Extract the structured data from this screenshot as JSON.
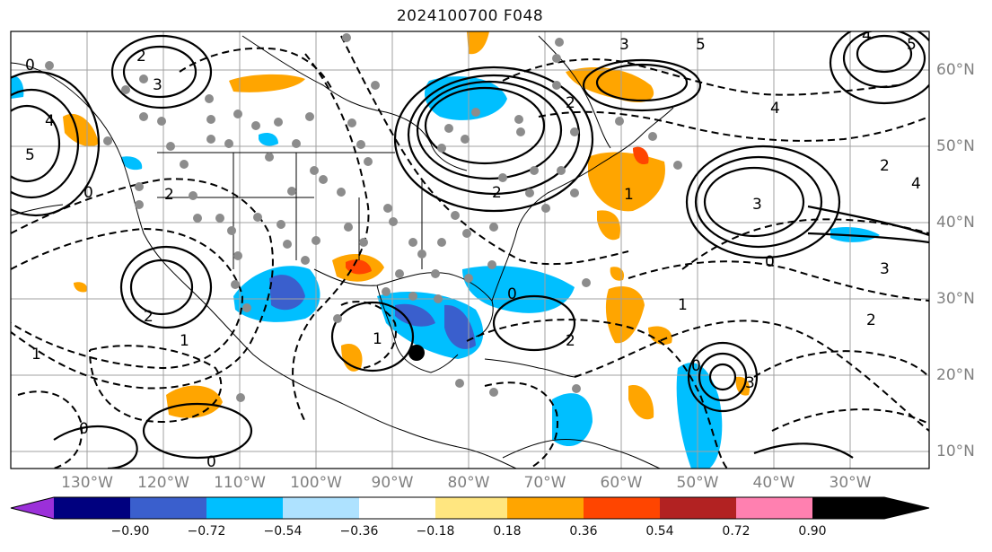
{
  "title": "2024100700 F048",
  "lon_labels": [
    "130°W",
    "120°W",
    "110°W",
    "100°W",
    "90°W",
    "80°W",
    "70°W",
    "60°W",
    "50°W",
    "40°W",
    "30°W"
  ],
  "lat_labels": [
    "60°N",
    "50°N",
    "40°N",
    "30°N",
    "20°N",
    "10°N"
  ],
  "colorbar": {
    "ticks": [
      "−0.90",
      "−0.72",
      "−0.54",
      "−0.36",
      "−0.18",
      "0.18",
      "0.36",
      "0.54",
      "0.72",
      "0.90"
    ],
    "colors": [
      "#9b30d9",
      "#00007f",
      "#3a5fcd",
      "#00bfff",
      "#aee2ff",
      "#ffffff",
      "#ffe680",
      "#ffa500",
      "#ff4500",
      "#b22222",
      "#ff80b0"
    ]
  },
  "contour_labels": [
    "0",
    "2",
    "3",
    "4",
    "5",
    "0",
    "2",
    "2",
    "1",
    "1",
    "0",
    "0",
    "2",
    "3",
    "4",
    "5",
    "1",
    "2",
    "3",
    "4",
    "0",
    "1",
    "2",
    "0",
    "2",
    "3",
    "4",
    "5",
    "0",
    "1",
    "2",
    "3"
  ],
  "palette": {
    "gray_dot": "#8c8c8c",
    "line": "#000000",
    "grid": "#a0a0a0",
    "coast": "#000000"
  }
}
